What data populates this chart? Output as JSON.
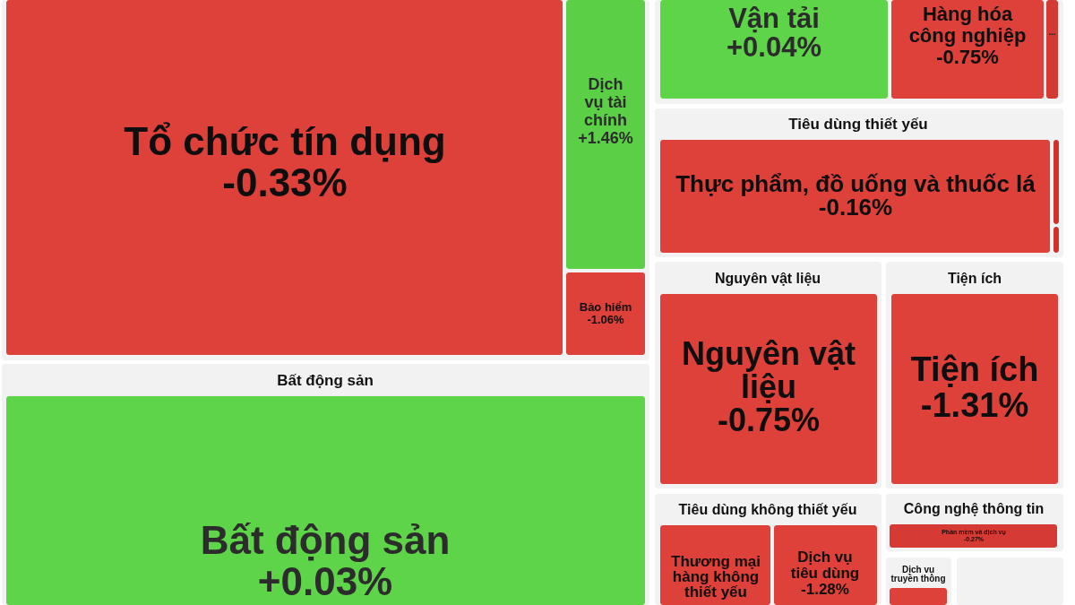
{
  "chart_data": {
    "type": "other",
    "categories": [
      "Tổ chức tín dụng",
      "Dịch vụ tài chính",
      "Bảo hiểm",
      "Bất động sản",
      "Vận tải",
      "Hàng hóa công nghiệp",
      "...",
      "Thực phẩm, đồ uống và thuốc lá",
      null,
      null,
      "Nguyên vật liệu",
      "Tiện ích",
      "Thương mại hàng không thiết yếu",
      "Dịch vụ tiêu dùng",
      "Phần mềm và dịch vụ",
      null
    ],
    "values": [
      -0.33,
      1.46,
      -1.06,
      0.03,
      0.04,
      -0.75,
      null,
      -0.16,
      null,
      null,
      -0.75,
      -1.31,
      null,
      -1.28,
      -0.27,
      null
    ],
    "value_labels": [
      "-0.33%",
      "+1.46%",
      "-1.06%",
      "+0.03%",
      "+0.04%",
      "-0.75%",
      null,
      "-0.16%",
      null,
      null,
      "-0.75%",
      "-1.31%",
      null,
      "-1.28%",
      "-0.27%",
      null
    ],
    "colors": [
      "#dd4139",
      "#5bd046",
      "#dd4139",
      "#5ed548",
      "#5ed548",
      "#dd4139",
      "#d23a33",
      "#dd4139",
      "#cc332d",
      "#cc332d",
      "#dd4139",
      "#dd4139",
      "#dd4139",
      "#dd4139",
      "#d63a34",
      "#dd4139"
    ],
    "annotations": [
      "Bất động sản",
      "Tiêu dùng thiết yếu",
      "Nguyên vật liệu",
      "Tiện ích",
      "Tiêu dùng không thiết yếu",
      "Công nghệ thông tin",
      "Dịch vụ truyền thông"
    ]
  }
}
